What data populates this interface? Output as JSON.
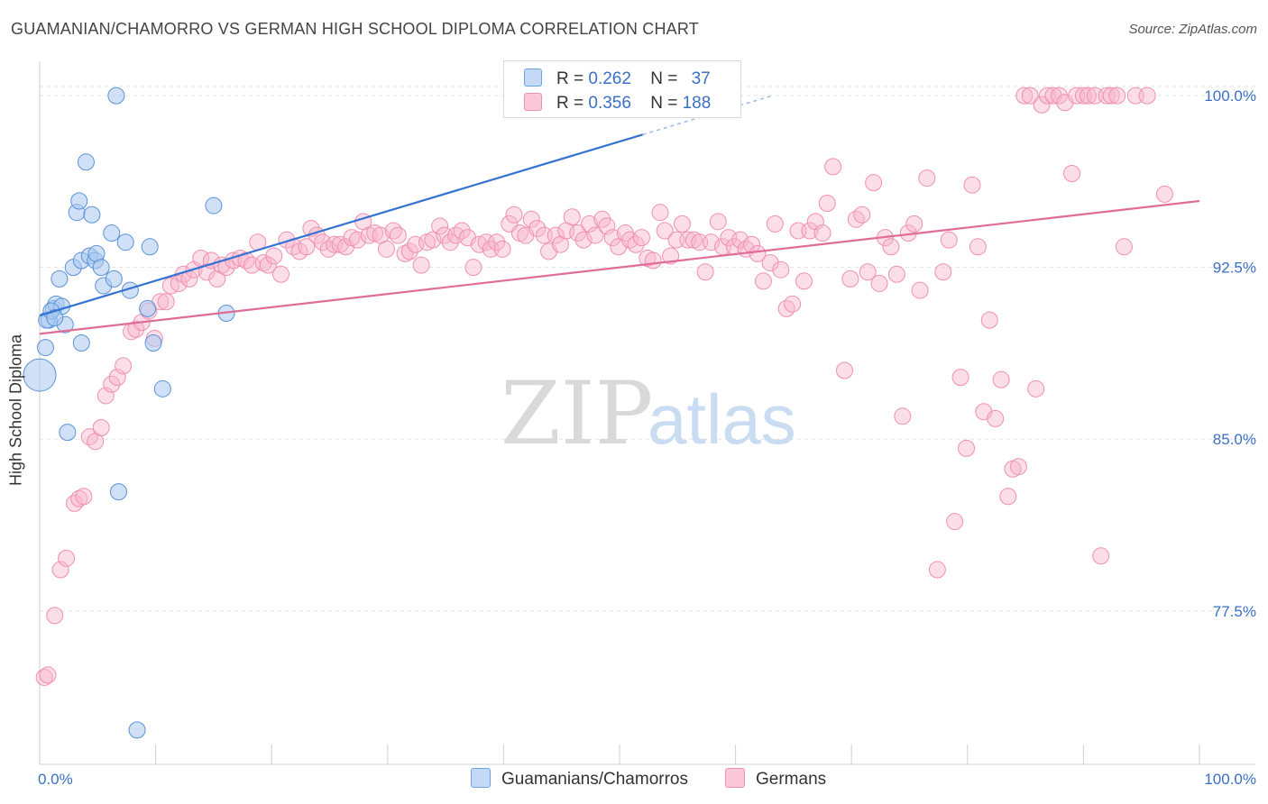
{
  "title": "GUAMANIAN/CHAMORRO VS GERMAN HIGH SCHOOL DIPLOMA CORRELATION CHART",
  "source": "Source: ZipAtlas.com",
  "watermark": {
    "zip": "ZIP",
    "atlas": "atlas"
  },
  "legend": {
    "rows": [
      {
        "r_label": "R =",
        "r_value": "0.262",
        "n_label": "N =",
        "n_value": "37"
      },
      {
        "r_label": "R =",
        "r_value": "0.356",
        "n_label": "N =",
        "n_value": "188"
      }
    ]
  },
  "chart_data": {
    "type": "scatter",
    "title": "GUAMANIAN/CHAMORRO VS GERMAN HIGH SCHOOL DIPLOMA CORRELATION CHART",
    "xlabel": "",
    "ylabel": "High School Diploma",
    "xlim": [
      0,
      100
    ],
    "ylim": [
      70.8,
      101.5
    ],
    "x_tick_labels": [
      "0.0%",
      "100.0%"
    ],
    "y_ticks": [
      77.5,
      85.0,
      92.5,
      100.0
    ],
    "y_tick_labels": [
      "77.5%",
      "85.0%",
      "92.5%",
      "100.0%"
    ],
    "grid": true,
    "legend_position": "top-center",
    "colors": {
      "Guamanians/Chamorros": "#6fa3e0",
      "Germans": "#f08fb0",
      "blue_line": "#3474d0",
      "pink_line": "#e06c98"
    },
    "series": [
      {
        "name": "Guamanians/Chamorros",
        "r": 0.262,
        "n": 37,
        "trend": [
          [
            0,
            90.4
          ],
          [
            52,
            98.3
          ]
        ],
        "points": [
          [
            0,
            87.8,
            18
          ],
          [
            0.5,
            89.0,
            9
          ],
          [
            0.8,
            90.2,
            9
          ],
          [
            1.2,
            90.7,
            9
          ],
          [
            1.4,
            90.9,
            9
          ],
          [
            1.7,
            92.0,
            9
          ],
          [
            1.9,
            90.8,
            9
          ],
          [
            2.2,
            90.0,
            9
          ],
          [
            2.4,
            85.3,
            9
          ],
          [
            2.9,
            92.5,
            9
          ],
          [
            3.2,
            94.9,
            9
          ],
          [
            3.4,
            95.4,
            9
          ],
          [
            3.6,
            92.8,
            9
          ],
          [
            3.6,
            89.2,
            9
          ],
          [
            4.0,
            97.1,
            9
          ],
          [
            4.3,
            93.0,
            9
          ],
          [
            4.5,
            94.8,
            9
          ],
          [
            4.8,
            92.8,
            9
          ],
          [
            4.9,
            93.1,
            9
          ],
          [
            5.3,
            92.5,
            9
          ],
          [
            5.5,
            91.7,
            9
          ],
          [
            6.2,
            94.0,
            9
          ],
          [
            6.4,
            92.0,
            9
          ],
          [
            6.6,
            100.0,
            9
          ],
          [
            6.8,
            82.7,
            9
          ],
          [
            7.4,
            93.6,
            9
          ],
          [
            7.8,
            91.5,
            9
          ],
          [
            8.4,
            72.3,
            9
          ],
          [
            9.3,
            90.7,
            9
          ],
          [
            9.5,
            93.4,
            9
          ],
          [
            9.8,
            89.2,
            9
          ],
          [
            10.6,
            87.2,
            9
          ],
          [
            15.0,
            95.2,
            9
          ],
          [
            16.1,
            90.5,
            9
          ],
          [
            0.6,
            90.2,
            9
          ],
          [
            1.0,
            90.6,
            9
          ],
          [
            1.3,
            90.3,
            9
          ]
        ]
      },
      {
        "name": "Germans",
        "r": 0.356,
        "n": 188,
        "trend": [
          [
            0,
            89.6
          ],
          [
            100,
            95.4
          ]
        ],
        "points": [
          [
            0.4,
            74.6
          ],
          [
            0.7,
            74.7
          ],
          [
            1.3,
            77.3
          ],
          [
            1.8,
            79.3
          ],
          [
            2.3,
            79.8
          ],
          [
            3.0,
            82.2
          ],
          [
            3.4,
            82.4
          ],
          [
            3.8,
            82.5
          ],
          [
            4.3,
            85.1
          ],
          [
            4.8,
            84.9
          ],
          [
            5.3,
            85.5
          ],
          [
            5.7,
            86.9
          ],
          [
            6.2,
            87.4
          ],
          [
            6.7,
            87.7
          ],
          [
            7.2,
            88.2
          ],
          [
            7.9,
            89.7
          ],
          [
            8.3,
            89.8
          ],
          [
            8.8,
            90.1
          ],
          [
            9.4,
            90.6
          ],
          [
            9.9,
            89.4
          ],
          [
            10.4,
            91.0
          ],
          [
            10.9,
            91.0
          ],
          [
            11.3,
            91.7
          ],
          [
            12.0,
            91.8
          ],
          [
            12.4,
            92.2
          ],
          [
            12.9,
            92.0
          ],
          [
            13.3,
            92.4
          ],
          [
            13.9,
            92.9
          ],
          [
            14.4,
            92.3
          ],
          [
            14.8,
            92.8
          ],
          [
            15.3,
            92.0
          ],
          [
            15.7,
            92.6
          ],
          [
            16.1,
            92.5
          ],
          [
            16.7,
            92.8
          ],
          [
            17.3,
            92.9
          ],
          [
            17.8,
            92.8
          ],
          [
            18.3,
            92.6
          ],
          [
            18.8,
            93.6
          ],
          [
            19.3,
            92.7
          ],
          [
            19.7,
            92.6
          ],
          [
            20.2,
            93.0
          ],
          [
            20.8,
            92.2
          ],
          [
            21.3,
            93.7
          ],
          [
            21.9,
            93.4
          ],
          [
            22.4,
            93.2
          ],
          [
            23.0,
            93.4
          ],
          [
            23.4,
            94.2
          ],
          [
            23.9,
            93.9
          ],
          [
            24.4,
            93.6
          ],
          [
            24.9,
            93.3
          ],
          [
            25.4,
            93.5
          ],
          [
            25.9,
            93.5
          ],
          [
            26.4,
            93.4
          ],
          [
            26.9,
            93.8
          ],
          [
            27.4,
            93.7
          ],
          [
            27.9,
            94.5
          ],
          [
            28.4,
            93.9
          ],
          [
            28.9,
            94.0
          ],
          [
            29.4,
            93.9
          ],
          [
            29.9,
            93.3
          ],
          [
            30.5,
            94.1
          ],
          [
            30.9,
            93.9
          ],
          [
            31.5,
            93.1
          ],
          [
            31.9,
            93.2
          ],
          [
            32.4,
            93.5
          ],
          [
            32.9,
            92.6
          ],
          [
            33.4,
            93.6
          ],
          [
            33.9,
            93.7
          ],
          [
            34.5,
            94.3
          ],
          [
            34.9,
            93.9
          ],
          [
            35.4,
            93.6
          ],
          [
            35.9,
            93.9
          ],
          [
            36.4,
            94.1
          ],
          [
            36.9,
            93.8
          ],
          [
            37.4,
            92.5
          ],
          [
            37.9,
            93.5
          ],
          [
            38.5,
            93.6
          ],
          [
            38.9,
            93.3
          ],
          [
            39.4,
            93.6
          ],
          [
            39.9,
            93.3
          ],
          [
            40.5,
            94.4
          ],
          [
            40.9,
            94.8
          ],
          [
            41.4,
            94.0
          ],
          [
            41.9,
            93.9
          ],
          [
            42.4,
            94.6
          ],
          [
            42.9,
            94.2
          ],
          [
            43.5,
            93.9
          ],
          [
            43.9,
            93.2
          ],
          [
            44.5,
            93.9
          ],
          [
            44.9,
            93.5
          ],
          [
            45.4,
            94.1
          ],
          [
            45.9,
            94.7
          ],
          [
            46.4,
            94.0
          ],
          [
            46.9,
            93.7
          ],
          [
            47.4,
            94.4
          ],
          [
            47.9,
            93.9
          ],
          [
            48.5,
            94.6
          ],
          [
            48.9,
            94.3
          ],
          [
            49.4,
            93.8
          ],
          [
            49.9,
            93.4
          ],
          [
            50.5,
            94.0
          ],
          [
            50.9,
            93.7
          ],
          [
            51.4,
            93.5
          ],
          [
            51.9,
            93.8
          ],
          [
            52.4,
            92.9
          ],
          [
            52.9,
            92.8
          ],
          [
            53.5,
            94.9
          ],
          [
            53.9,
            94.1
          ],
          [
            54.4,
            93.0
          ],
          [
            54.9,
            93.7
          ],
          [
            55.4,
            94.4
          ],
          [
            55.9,
            93.7
          ],
          [
            56.4,
            93.7
          ],
          [
            56.9,
            93.6
          ],
          [
            57.4,
            92.3
          ],
          [
            57.9,
            93.6
          ],
          [
            58.5,
            94.5
          ],
          [
            58.9,
            93.4
          ],
          [
            59.4,
            93.8
          ],
          [
            59.9,
            93.4
          ],
          [
            60.4,
            93.7
          ],
          [
            60.9,
            93.3
          ],
          [
            61.4,
            93.5
          ],
          [
            61.9,
            93.1
          ],
          [
            62.4,
            91.9
          ],
          [
            63.0,
            92.7
          ],
          [
            63.4,
            94.4
          ],
          [
            63.9,
            92.4
          ],
          [
            64.4,
            90.7
          ],
          [
            64.9,
            90.9
          ],
          [
            65.4,
            94.1
          ],
          [
            65.9,
            91.9
          ],
          [
            66.4,
            94.1
          ],
          [
            66.9,
            94.5
          ],
          [
            67.5,
            94.0
          ],
          [
            67.9,
            95.3
          ],
          [
            68.4,
            96.9
          ],
          [
            69.4,
            88.0
          ],
          [
            69.9,
            92.0
          ],
          [
            70.4,
            94.6
          ],
          [
            70.9,
            94.8
          ],
          [
            71.4,
            92.3
          ],
          [
            71.9,
            96.2
          ],
          [
            72.4,
            91.8
          ],
          [
            72.9,
            93.8
          ],
          [
            73.4,
            93.4
          ],
          [
            73.9,
            92.2
          ],
          [
            74.4,
            86.0
          ],
          [
            74.9,
            94.0
          ],
          [
            75.4,
            94.4
          ],
          [
            75.9,
            91.5
          ],
          [
            76.5,
            96.4
          ],
          [
            77.4,
            79.3
          ],
          [
            77.9,
            92.3
          ],
          [
            78.4,
            93.7
          ],
          [
            78.9,
            81.4
          ],
          [
            79.4,
            87.7
          ],
          [
            79.9,
            84.6
          ],
          [
            80.4,
            96.1
          ],
          [
            80.9,
            93.4
          ],
          [
            81.4,
            86.2
          ],
          [
            81.9,
            90.2
          ],
          [
            82.4,
            85.9
          ],
          [
            82.9,
            87.6
          ],
          [
            83.5,
            82.5
          ],
          [
            83.9,
            83.7
          ],
          [
            84.4,
            83.8
          ],
          [
            84.9,
            100.0
          ],
          [
            85.4,
            100.0
          ],
          [
            85.9,
            87.2
          ],
          [
            86.4,
            99.6
          ],
          [
            86.9,
            100.0
          ],
          [
            87.4,
            100.0
          ],
          [
            87.9,
            100.0
          ],
          [
            88.4,
            99.7
          ],
          [
            89.0,
            96.6
          ],
          [
            89.4,
            100.0
          ],
          [
            90.0,
            100.0
          ],
          [
            90.4,
            100.0
          ],
          [
            91.0,
            100.0
          ],
          [
            91.5,
            79.9
          ],
          [
            92.0,
            100.0
          ],
          [
            92.4,
            100.0
          ],
          [
            92.9,
            100.0
          ],
          [
            93.5,
            93.4
          ],
          [
            94.5,
            100.0
          ],
          [
            95.5,
            100.0
          ],
          [
            97.0,
            95.7
          ]
        ]
      }
    ]
  }
}
